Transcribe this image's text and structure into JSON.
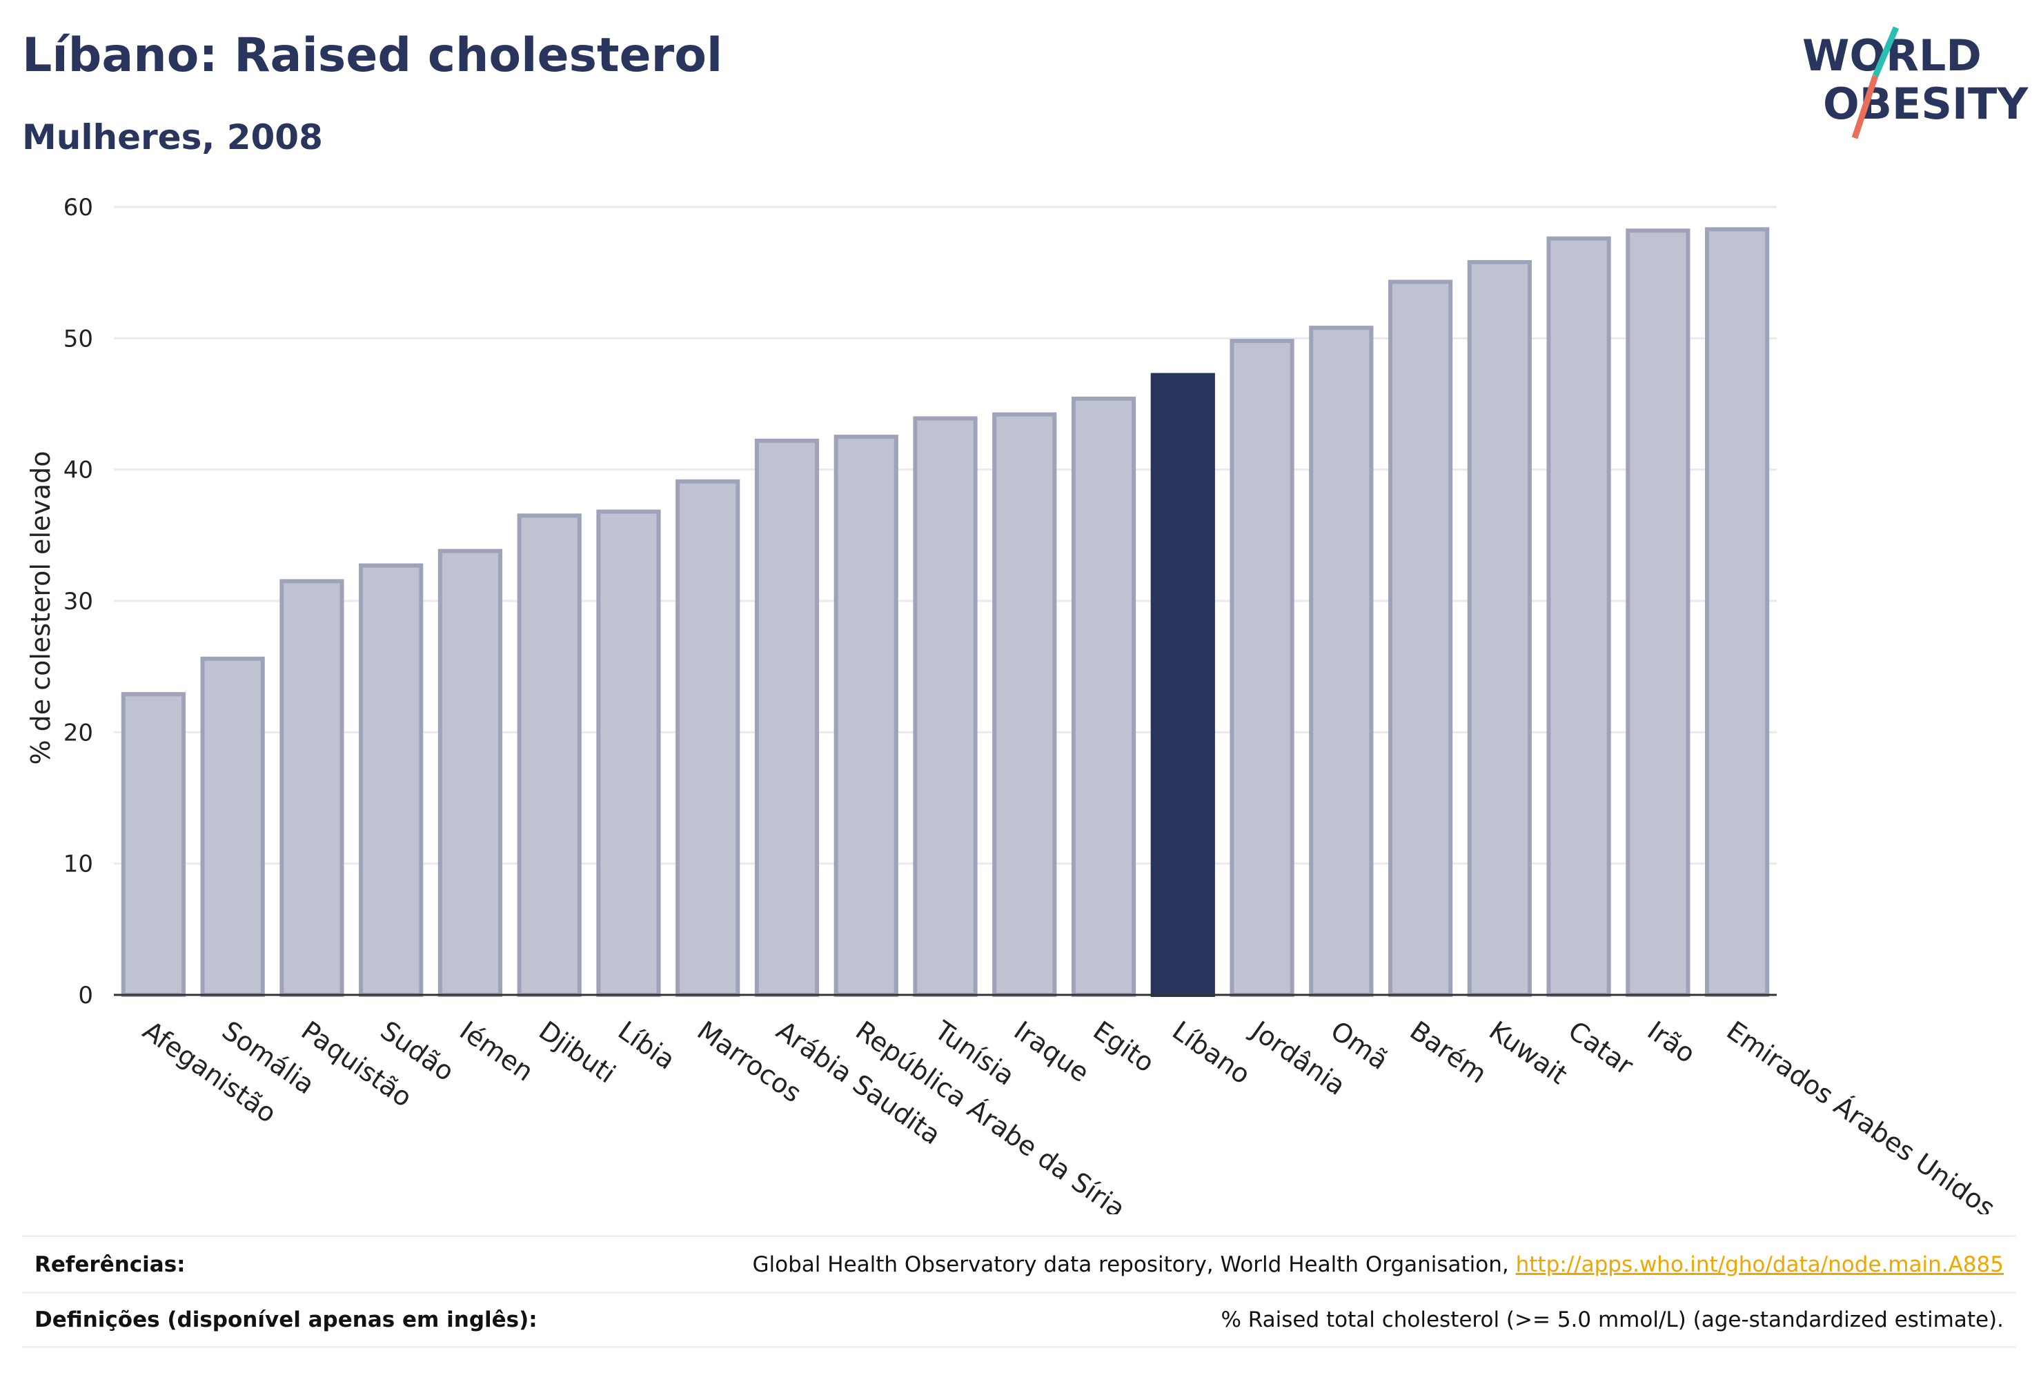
{
  "title": "Líbano: Raised cholesterol",
  "subtitle": "Mulheres, 2008",
  "logo": {
    "line1": "WORLD",
    "line2": "OBESITY",
    "colors": {
      "text": "#2a355e",
      "slash_top": "#2bbfb3",
      "slash_bottom": "#e8705a"
    }
  },
  "colors": {
    "bar": "#bfc2d0",
    "bar_border": "#9ea3ba",
    "highlight": "#2a355e",
    "grid": "#e9eaf0",
    "link": "#f0a500"
  },
  "chart_data": {
    "type": "bar",
    "ylabel": "% de colesterol elevado",
    "ylim": [
      0,
      60
    ],
    "yticks": [
      0,
      10,
      20,
      30,
      40,
      50,
      60
    ],
    "grid": true,
    "highlight": "Líbano",
    "categories": [
      "Afeganistão",
      "Somália",
      "Paquistão",
      "Sudão",
      "Iémen",
      "Djibuti",
      "Líbia",
      "Marrocos",
      "Arábia Saudita",
      "República Árabe da Síria",
      "Tunísia",
      "Iraque",
      "Egito",
      "Líbano",
      "Jordânia",
      "Omã",
      "Barém",
      "Kuwait",
      "Catar",
      "Irão",
      "Emirados Árabes Unidos"
    ],
    "values": [
      22.9,
      25.6,
      31.5,
      32.7,
      33.8,
      36.5,
      36.8,
      39.1,
      42.2,
      42.5,
      43.9,
      44.2,
      45.4,
      47.2,
      49.8,
      50.8,
      54.3,
      55.8,
      57.6,
      58.2,
      58.3
    ]
  },
  "footer": {
    "references_label": "Referências:",
    "references_text": "Global Health Observatory data repository, World Health Organisation, ",
    "references_link": "http://apps.who.int/gho/data/node.main.A885",
    "definitions_label": "Definições (disponível apenas em inglês):",
    "definitions_text": "% Raised total cholesterol (>= 5.0 mmol/L) (age-standardized estimate)."
  }
}
